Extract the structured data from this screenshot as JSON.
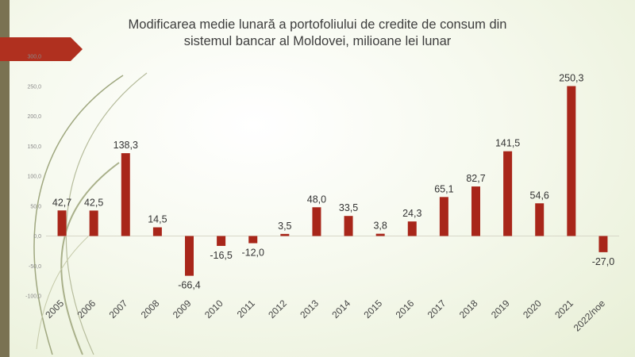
{
  "title_line1": "Modificarea medie lunară a portofoliului de credite de consum din",
  "title_line2": "sistemul bancar al Moldovei,  milioane lei lunar",
  "colors": {
    "bar": "#a8261a",
    "arrow": "#b0301f",
    "strip": "#7a7252"
  },
  "chart_data": {
    "type": "bar",
    "title": "Modificarea medie lunară a portofoliului de credite de consum din sistemul bancar al Moldovei,  milioane lei lunar",
    "categories": [
      "2005",
      "2006",
      "2007",
      "2008",
      "2009",
      "2010",
      "2011",
      "2012",
      "2013",
      "2014",
      "2015",
      "2016",
      "2017",
      "2018",
      "2019",
      "2020",
      "2021",
      "2022/noe"
    ],
    "values": [
      42.7,
      42.5,
      138.3,
      14.5,
      -66.4,
      -16.5,
      -12.0,
      3.5,
      48.0,
      33.5,
      3.8,
      24.3,
      65.1,
      82.7,
      141.5,
      54.6,
      250.3,
      -27.0
    ],
    "value_labels": [
      "42,7",
      "42,5",
      "138,3",
      "14,5",
      "-66,4",
      "-16,5",
      "-12,0",
      "3,5",
      "48,0",
      "33,5",
      "3,8",
      "24,3",
      "65,1",
      "82,7",
      "141,5",
      "54,6",
      "250,3",
      "-27,0"
    ],
    "y_ticks": [
      -100,
      -50,
      0,
      50,
      100,
      150,
      200,
      250,
      300
    ],
    "y_tick_labels": [
      "-100,0",
      "-50,0",
      "0,0",
      "50,0",
      "100,0",
      "150,0",
      "200,0",
      "250,0",
      "300,0"
    ],
    "ylim": [
      -100,
      300
    ],
    "xlabel": "",
    "ylabel": "",
    "grid": false,
    "legend": "none"
  }
}
